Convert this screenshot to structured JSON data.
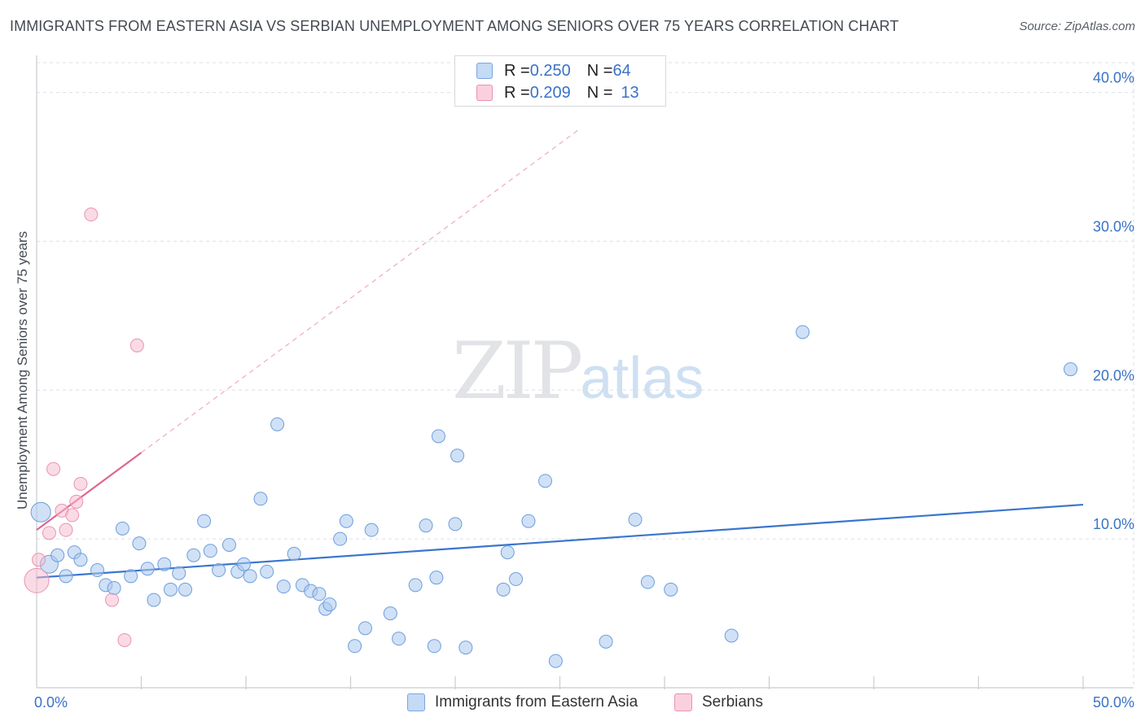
{
  "title": "IMMIGRANTS FROM EASTERN ASIA VS SERBIAN UNEMPLOYMENT AMONG SENIORS OVER 75 YEARS CORRELATION CHART",
  "source": "Source: ZipAtlas.com",
  "watermark": {
    "zip": "ZIP",
    "atlas": "atlas"
  },
  "legend": {
    "r_label": "R = ",
    "n_label": "N = ",
    "rows": [
      {
        "r": "0.250",
        "n": "64",
        "color": "#a9c8ee"
      },
      {
        "r": "0.209",
        "n": "13",
        "color": "#f5b7cb"
      }
    ]
  },
  "bottom_legend": [
    {
      "label": "Immigrants from Eastern Asia",
      "color": "#a9c8ee"
    },
    {
      "label": "Serbians",
      "color": "#f5b7cb"
    }
  ],
  "chart_data": {
    "type": "scatter",
    "xlabel": "",
    "ylabel": "Unemployment Among Seniors over 75 years",
    "xlim": [
      0,
      50
    ],
    "ylim": [
      0,
      42
    ],
    "x_tick_labels": [
      "0.0%",
      "50.0%"
    ],
    "y_ticks": [
      10,
      20,
      30,
      40
    ],
    "y_tick_labels": [
      "10.0%",
      "20.0%",
      "30.0%",
      "40.0%"
    ],
    "grid": true,
    "legend_position": "top-center",
    "series": [
      {
        "name": "Immigrants from Eastern Asia",
        "color": "#3a76cc",
        "fill": "#a9c8ee",
        "points": [
          [
            0.2,
            11.8
          ],
          [
            0.6,
            8.3
          ],
          [
            1.0,
            8.9
          ],
          [
            1.4,
            7.5
          ],
          [
            1.8,
            9.1
          ],
          [
            2.1,
            8.6
          ],
          [
            2.9,
            7.9
          ],
          [
            3.3,
            6.9
          ],
          [
            3.7,
            6.7
          ],
          [
            4.1,
            10.7
          ],
          [
            4.5,
            7.5
          ],
          [
            4.9,
            9.7
          ],
          [
            5.3,
            8.0
          ],
          [
            5.6,
            5.9
          ],
          [
            6.1,
            8.3
          ],
          [
            6.4,
            6.6
          ],
          [
            6.8,
            7.7
          ],
          [
            7.1,
            6.6
          ],
          [
            7.5,
            8.9
          ],
          [
            8.0,
            11.2
          ],
          [
            8.3,
            9.2
          ],
          [
            8.7,
            7.9
          ],
          [
            9.2,
            9.6
          ],
          [
            9.6,
            7.8
          ],
          [
            9.9,
            8.3
          ],
          [
            10.2,
            7.5
          ],
          [
            10.7,
            12.7
          ],
          [
            11.0,
            7.8
          ],
          [
            11.5,
            17.7
          ],
          [
            11.8,
            6.8
          ],
          [
            12.3,
            9.0
          ],
          [
            12.7,
            6.9
          ],
          [
            13.1,
            6.5
          ],
          [
            13.5,
            6.3
          ],
          [
            13.8,
            5.3
          ],
          [
            14.0,
            5.6
          ],
          [
            14.5,
            10.0
          ],
          [
            14.8,
            11.2
          ],
          [
            15.2,
            2.8
          ],
          [
            15.7,
            4.0
          ],
          [
            16.0,
            10.6
          ],
          [
            16.9,
            5.0
          ],
          [
            17.3,
            3.3
          ],
          [
            18.1,
            6.9
          ],
          [
            18.6,
            10.9
          ],
          [
            19.1,
            7.4
          ],
          [
            19.0,
            2.8
          ],
          [
            19.2,
            16.9
          ],
          [
            20.0,
            11.0
          ],
          [
            20.1,
            15.6
          ],
          [
            20.5,
            2.7
          ],
          [
            22.3,
            6.6
          ],
          [
            22.5,
            9.1
          ],
          [
            22.9,
            7.3
          ],
          [
            23.5,
            11.2
          ],
          [
            24.3,
            13.9
          ],
          [
            24.8,
            1.8
          ],
          [
            27.2,
            3.1
          ],
          [
            28.6,
            11.3
          ],
          [
            29.2,
            7.1
          ],
          [
            30.3,
            6.6
          ],
          [
            33.2,
            3.5
          ],
          [
            36.6,
            23.9
          ],
          [
            49.4,
            21.4
          ]
        ],
        "trend": {
          "x": [
            0,
            50
          ],
          "y": [
            7.4,
            12.3
          ]
        }
      },
      {
        "name": "Serbians",
        "color": "#e0668e",
        "fill": "#f5b7cb",
        "points": [
          [
            0.0,
            7.2
          ],
          [
            0.1,
            8.6
          ],
          [
            0.6,
            10.4
          ],
          [
            0.8,
            14.7
          ],
          [
            1.2,
            11.9
          ],
          [
            1.4,
            10.6
          ],
          [
            1.7,
            11.6
          ],
          [
            1.9,
            12.5
          ],
          [
            2.1,
            13.7
          ],
          [
            2.6,
            31.8
          ],
          [
            3.6,
            5.9
          ],
          [
            4.2,
            3.2
          ],
          [
            4.8,
            23.0
          ]
        ],
        "trend_solid": {
          "x": [
            0,
            5.0
          ],
          "y": [
            10.6,
            15.8
          ]
        },
        "trend_dashed": {
          "x": [
            5.0,
            26.0
          ],
          "y": [
            15.8,
            37.6
          ]
        }
      }
    ]
  }
}
